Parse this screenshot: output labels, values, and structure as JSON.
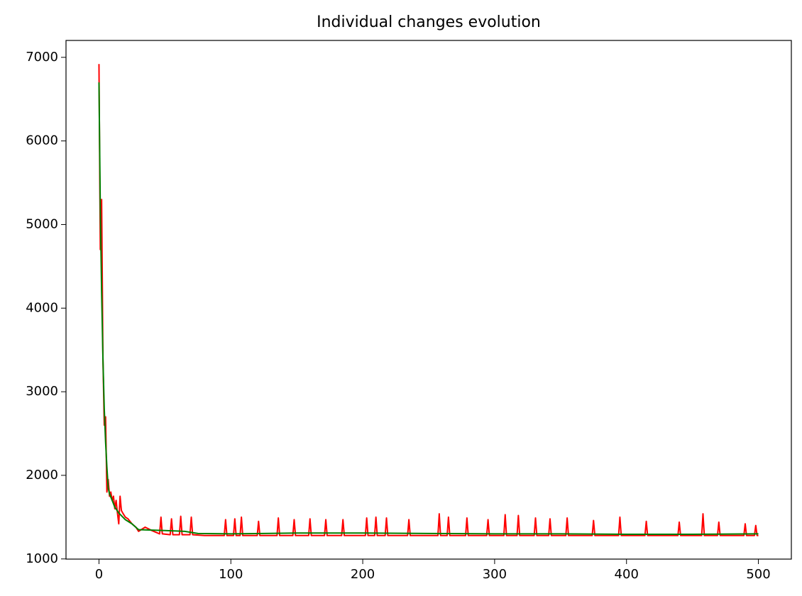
{
  "chart_data": {
    "type": "line",
    "title": "Individual changes evolution",
    "xlim": [
      -25,
      525
    ],
    "xticks": [
      0,
      100,
      200,
      300,
      400,
      500
    ],
    "ylim": [
      998,
      7202
    ],
    "yticks": [
      1000,
      2000,
      3000,
      4000,
      5000,
      6000,
      7000
    ],
    "grid": false,
    "series": [
      {
        "color": "#ff0000",
        "x": [
          0,
          1,
          2,
          3,
          4,
          5,
          6,
          7,
          8,
          9,
          10,
          11,
          12,
          13,
          14,
          15,
          16,
          17,
          18,
          20,
          22,
          25,
          28,
          30,
          35,
          40,
          46,
          47,
          48,
          54,
          55,
          56,
          61,
          62,
          63,
          69,
          70,
          71,
          80,
          95,
          96,
          97,
          102,
          103,
          104,
          107,
          108,
          109,
          120,
          121,
          122,
          135,
          136,
          137,
          147,
          148,
          149,
          159,
          160,
          161,
          171,
          172,
          173,
          184,
          185,
          186,
          202,
          203,
          204,
          209,
          210,
          211,
          217,
          218,
          219,
          234,
          235,
          236,
          257,
          258,
          259,
          264,
          265,
          266,
          278,
          279,
          280,
          294,
          295,
          296,
          307,
          308,
          309,
          317,
          318,
          319,
          330,
          331,
          332,
          341,
          342,
          343,
          354,
          355,
          356,
          374,
          375,
          376,
          394,
          395,
          396,
          414,
          415,
          416,
          439,
          440,
          441,
          457,
          458,
          459,
          469,
          470,
          471,
          489,
          490,
          491,
          497,
          498,
          499,
          500
        ],
        "values": [
          6920,
          4700,
          5300,
          3400,
          2600,
          2700,
          1800,
          1950,
          1750,
          1800,
          1700,
          1750,
          1600,
          1700,
          1550,
          1420,
          1750,
          1580,
          1550,
          1500,
          1480,
          1420,
          1380,
          1330,
          1380,
          1340,
          1300,
          1500,
          1300,
          1290,
          1480,
          1290,
          1290,
          1510,
          1290,
          1290,
          1500,
          1290,
          1280,
          1280,
          1470,
          1280,
          1280,
          1480,
          1280,
          1280,
          1500,
          1280,
          1280,
          1450,
          1280,
          1280,
          1490,
          1280,
          1280,
          1470,
          1280,
          1280,
          1480,
          1280,
          1280,
          1470,
          1280,
          1280,
          1470,
          1280,
          1280,
          1490,
          1280,
          1280,
          1500,
          1280,
          1280,
          1490,
          1280,
          1280,
          1470,
          1280,
          1280,
          1540,
          1280,
          1280,
          1500,
          1280,
          1280,
          1490,
          1280,
          1280,
          1470,
          1280,
          1280,
          1530,
          1280,
          1280,
          1520,
          1280,
          1280,
          1490,
          1280,
          1280,
          1480,
          1280,
          1280,
          1490,
          1280,
          1280,
          1460,
          1280,
          1280,
          1500,
          1280,
          1280,
          1450,
          1280,
          1280,
          1440,
          1280,
          1280,
          1540,
          1280,
          1280,
          1440,
          1280,
          1280,
          1420,
          1280,
          1280,
          1400,
          1280,
          1280
        ]
      },
      {
        "color": "#008000",
        "x": [
          0,
          1,
          2,
          3,
          4,
          5,
          6,
          7,
          8,
          10,
          12,
          15,
          20,
          25,
          30,
          50,
          65,
          75,
          100,
          150,
          200,
          250,
          300,
          350,
          400,
          450,
          500
        ],
        "values": [
          6700,
          5200,
          4200,
          3400,
          2800,
          2400,
          2100,
          1850,
          1780,
          1700,
          1620,
          1550,
          1470,
          1420,
          1350,
          1340,
          1330,
          1305,
          1300,
          1310,
          1310,
          1305,
          1300,
          1300,
          1295,
          1295,
          1300
        ]
      }
    ]
  }
}
